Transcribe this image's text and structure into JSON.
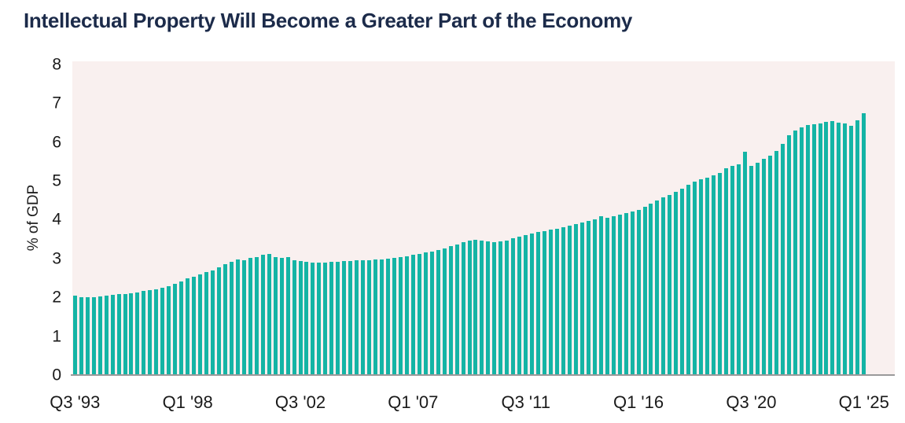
{
  "page": {
    "background": "#ffffff"
  },
  "chart_data": {
    "type": "bar",
    "title": "Intellectual Property Will Become a Greater Part of the Economy",
    "ylabel": "% of GDP",
    "x_start": "Q3 1993",
    "x_end": "Q1 2025",
    "frequency": "quarterly",
    "ylim": [
      0,
      8
    ],
    "yticks": [
      0,
      1,
      2,
      3,
      4,
      5,
      6,
      7,
      8
    ],
    "xtick_labels": [
      "Q3 '93",
      "Q1 '98",
      "Q3 '02",
      "Q1 '07",
      "Q3 '11",
      "Q1 '16",
      "Q3 '20",
      "Q1 '25"
    ],
    "xtick_every_n_bars": 18,
    "grid": false,
    "legend": false,
    "bar_color": "#14b4a5",
    "plot_background": "#f9f0ef",
    "title_color": "#1c2b4a",
    "axis_line_color": "#9a9a9a",
    "tick_label_color": "#1a1a1a",
    "values": [
      2.04,
      2.01,
      2.0,
      2.0,
      2.02,
      2.04,
      2.06,
      2.08,
      2.09,
      2.11,
      2.13,
      2.17,
      2.19,
      2.21,
      2.25,
      2.29,
      2.34,
      2.41,
      2.48,
      2.53,
      2.6,
      2.65,
      2.7,
      2.77,
      2.85,
      2.91,
      2.97,
      2.95,
      3.01,
      3.04,
      3.09,
      3.11,
      3.04,
      3.01,
      3.04,
      2.96,
      2.93,
      2.91,
      2.89,
      2.89,
      2.9,
      2.91,
      2.92,
      2.94,
      2.94,
      2.95,
      2.95,
      2.96,
      2.97,
      2.98,
      3.0,
      3.02,
      3.04,
      3.06,
      3.09,
      3.12,
      3.15,
      3.18,
      3.22,
      3.26,
      3.31,
      3.37,
      3.43,
      3.47,
      3.49,
      3.46,
      3.44,
      3.43,
      3.44,
      3.47,
      3.52,
      3.56,
      3.6,
      3.64,
      3.68,
      3.71,
      3.74,
      3.77,
      3.8,
      3.84,
      3.88,
      3.92,
      3.96,
      4.0,
      4.08,
      4.04,
      4.09,
      4.13,
      4.17,
      4.2,
      4.26,
      4.33,
      4.41,
      4.49,
      4.57,
      4.64,
      4.72,
      4.8,
      4.89,
      4.97,
      5.04,
      5.08,
      5.15,
      5.21,
      5.32,
      5.38,
      5.42,
      5.75,
      5.39,
      5.46,
      5.56,
      5.64,
      5.76,
      5.95,
      6.18,
      6.3,
      6.38,
      6.43,
      6.45,
      6.47,
      6.52,
      6.53,
      6.5,
      6.47,
      6.42,
      6.56,
      6.73
    ]
  }
}
